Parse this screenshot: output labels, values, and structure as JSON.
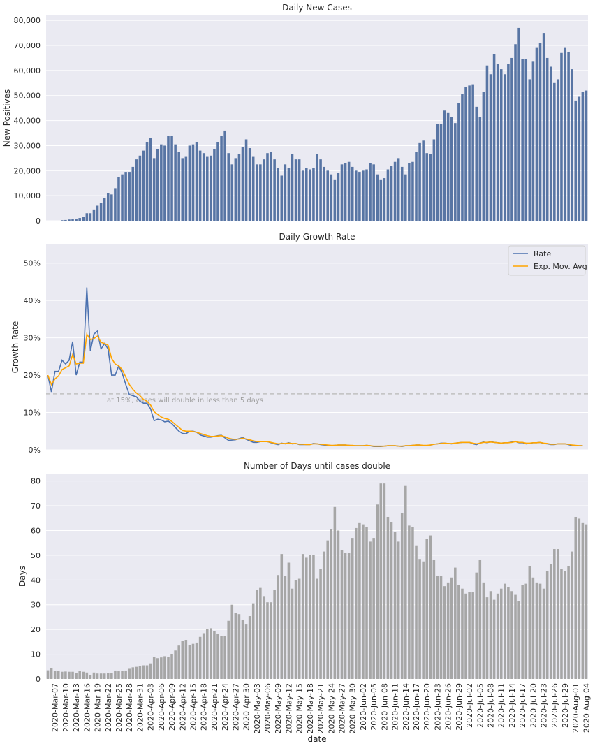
{
  "chart_data": [
    {
      "type": "bar",
      "title": "Daily New Cases",
      "ylabel": "New Positives",
      "xlabel": "",
      "ylim": [
        0,
        82000
      ],
      "yticks": [
        "0",
        "10,000",
        "20,000",
        "30,000",
        "40,000",
        "50,000",
        "60,000",
        "70,000",
        "80,000"
      ],
      "bar_color": "#5875a4",
      "grid": true,
      "start_date": "2020-03-05",
      "values": [
        0,
        0,
        0,
        0,
        200,
        300,
        500,
        700,
        600,
        1100,
        1500,
        3000,
        3000,
        4500,
        6000,
        7000,
        9000,
        11000,
        10500,
        13000,
        17500,
        18500,
        19500,
        19500,
        21500,
        24500,
        26000,
        28000,
        31500,
        33000,
        25000,
        28500,
        30500,
        30000,
        34000,
        34000,
        30500,
        27500,
        25000,
        25500,
        30000,
        30500,
        31500,
        28000,
        27000,
        25500,
        26000,
        28500,
        31500,
        34000,
        36000,
        27000,
        22500,
        25000,
        26500,
        29500,
        32500,
        29000,
        25500,
        22500,
        22500,
        24500,
        27000,
        27500,
        24500,
        21000,
        18000,
        22500,
        21000,
        26500,
        24500,
        24500,
        20000,
        21000,
        20500,
        21000,
        26500,
        24500,
        21500,
        20000,
        18500,
        16500,
        19000,
        22500,
        23000,
        23500,
        21500,
        20000,
        19500,
        20000,
        20500,
        23000,
        22500,
        18500,
        16500,
        17000,
        20500,
        22000,
        23500,
        25000,
        21500,
        18500,
        23000,
        23500,
        27500,
        31000,
        32000,
        27000,
        26500,
        32500,
        38500,
        38500,
        44000,
        43000,
        41500,
        39000,
        47000,
        50500,
        53500,
        54000,
        54500,
        45500,
        41500,
        51500,
        62000,
        58500,
        66500,
        62500,
        60500,
        58500,
        62500,
        65000,
        70500,
        77000,
        64500,
        64500,
        56500,
        63500,
        69000,
        71000,
        75000,
        65000,
        61500,
        55000,
        56500,
        67000,
        69000,
        67500,
        60500,
        48000,
        49500,
        51500,
        52000
      ]
    },
    {
      "type": "line",
      "title": "Daily Growth Rate",
      "ylabel": "Growth Rate",
      "xlabel": "",
      "ylim": [
        0,
        0.55
      ],
      "yticks": [
        "0%",
        "10%",
        "20%",
        "30%",
        "40%",
        "50%"
      ],
      "grid": true,
      "legend_position": "top-right",
      "series": [
        {
          "name": "Rate",
          "color": "#4c72b0",
          "values": [
            0.2,
            0.155,
            0.21,
            0.21,
            0.24,
            0.23,
            0.24,
            0.29,
            0.2,
            0.235,
            0.235,
            0.435,
            0.265,
            0.31,
            0.318,
            0.27,
            0.285,
            0.27,
            0.2,
            0.2,
            0.225,
            0.205,
            0.175,
            0.148,
            0.145,
            0.142,
            0.13,
            0.125,
            0.125,
            0.11,
            0.078,
            0.082,
            0.08,
            0.075,
            0.077,
            0.07,
            0.06,
            0.05,
            0.044,
            0.043,
            0.05,
            0.05,
            0.047,
            0.04,
            0.037,
            0.034,
            0.034,
            0.036,
            0.038,
            0.039,
            0.032,
            0.025,
            0.026,
            0.027,
            0.03,
            0.033,
            0.028,
            0.024,
            0.02,
            0.02,
            0.022,
            0.022,
            0.022,
            0.019,
            0.016,
            0.014,
            0.018,
            0.016,
            0.019,
            0.016,
            0.017,
            0.014,
            0.014,
            0.014,
            0.014,
            0.017,
            0.016,
            0.014,
            0.013,
            0.012,
            0.011,
            0.012,
            0.013,
            0.013,
            0.013,
            0.012,
            0.011,
            0.011,
            0.011,
            0.011,
            0.012,
            0.011,
            0.009,
            0.009,
            0.009,
            0.01,
            0.011,
            0.011,
            0.011,
            0.01,
            0.009,
            0.011,
            0.011,
            0.012,
            0.013,
            0.013,
            0.011,
            0.011,
            0.013,
            0.015,
            0.016,
            0.018,
            0.018,
            0.017,
            0.016,
            0.018,
            0.019,
            0.02,
            0.02,
            0.02,
            0.016,
            0.014,
            0.018,
            0.021,
            0.019,
            0.022,
            0.02,
            0.019,
            0.018,
            0.019,
            0.019,
            0.021,
            0.023,
            0.019,
            0.019,
            0.016,
            0.017,
            0.019,
            0.019,
            0.02,
            0.017,
            0.016,
            0.014,
            0.014,
            0.016,
            0.016,
            0.016,
            0.014,
            0.011,
            0.011,
            0.011,
            0.011
          ]
        },
        {
          "name": "Exp. Mov. Avg",
          "color": "#ffa500",
          "values": [
            0.2,
            0.175,
            0.19,
            0.198,
            0.215,
            0.22,
            0.225,
            0.255,
            0.23,
            0.232,
            0.232,
            0.31,
            0.295,
            0.298,
            0.305,
            0.288,
            0.285,
            0.28,
            0.245,
            0.23,
            0.225,
            0.215,
            0.195,
            0.175,
            0.162,
            0.152,
            0.145,
            0.135,
            0.13,
            0.12,
            0.102,
            0.095,
            0.088,
            0.084,
            0.082,
            0.076,
            0.068,
            0.06,
            0.052,
            0.05,
            0.05,
            0.049,
            0.047,
            0.044,
            0.041,
            0.038,
            0.036,
            0.036,
            0.037,
            0.038,
            0.035,
            0.031,
            0.029,
            0.028,
            0.029,
            0.031,
            0.029,
            0.027,
            0.024,
            0.022,
            0.022,
            0.022,
            0.022,
            0.02,
            0.018,
            0.016,
            0.017,
            0.017,
            0.018,
            0.017,
            0.017,
            0.015,
            0.015,
            0.014,
            0.014,
            0.016,
            0.016,
            0.015,
            0.014,
            0.013,
            0.012,
            0.012,
            0.013,
            0.013,
            0.013,
            0.012,
            0.012,
            0.011,
            0.011,
            0.011,
            0.012,
            0.011,
            0.01,
            0.01,
            0.01,
            0.01,
            0.011,
            0.011,
            0.011,
            0.01,
            0.01,
            0.011,
            0.011,
            0.012,
            0.013,
            0.013,
            0.012,
            0.012,
            0.013,
            0.015,
            0.016,
            0.017,
            0.018,
            0.017,
            0.017,
            0.018,
            0.019,
            0.02,
            0.02,
            0.02,
            0.018,
            0.016,
            0.018,
            0.02,
            0.02,
            0.021,
            0.02,
            0.019,
            0.018,
            0.019,
            0.019,
            0.02,
            0.022,
            0.02,
            0.02,
            0.018,
            0.018,
            0.019,
            0.019,
            0.02,
            0.018,
            0.017,
            0.015,
            0.015,
            0.016,
            0.016,
            0.016,
            0.015,
            0.013,
            0.012,
            0.011,
            0.011
          ]
        }
      ],
      "reference_line": {
        "y": 0.15,
        "style": "dashed",
        "color": "#c0c0c0",
        "label": "at 15%, cases will double in less than 5 days"
      }
    },
    {
      "type": "bar",
      "title": "Number of Days until cases double",
      "ylabel": "Days",
      "xlabel": "date",
      "ylim": [
        0,
        83
      ],
      "yticks": [
        "0",
        "10",
        "20",
        "30",
        "40",
        "50",
        "60",
        "70",
        "80"
      ],
      "bar_color": "#a6a6a6",
      "grid": true,
      "x_tick_labels": [
        "2020-Mar-07",
        "2020-Mar-10",
        "2020-Mar-13",
        "2020-Mar-16",
        "2020-Mar-19",
        "2020-Mar-22",
        "2020-Mar-25",
        "2020-Mar-28",
        "2020-Mar-31",
        "2020-Apr-03",
        "2020-Apr-06",
        "2020-Apr-09",
        "2020-Apr-12",
        "2020-Apr-15",
        "2020-Apr-18",
        "2020-Apr-21",
        "2020-Apr-24",
        "2020-Apr-27",
        "2020-Apr-30",
        "2020-May-03",
        "2020-May-06",
        "2020-May-09",
        "2020-May-12",
        "2020-May-15",
        "2020-May-18",
        "2020-May-21",
        "2020-May-24",
        "2020-May-27",
        "2020-May-30",
        "2020-Jun-02",
        "2020-Jun-05",
        "2020-Jun-08",
        "2020-Jun-11",
        "2020-Jun-14",
        "2020-Jun-17",
        "2020-Jun-20",
        "2020-Jun-23",
        "2020-Jun-26",
        "2020-Jun-29",
        "2020-Jul-02",
        "2020-Jul-05",
        "2020-Jul-08",
        "2020-Jul-11",
        "2020-Jul-14",
        "2020-Jul-17",
        "2020-Jul-20",
        "2020-Jul-23",
        "2020-Jul-26",
        "2020-Jul-29",
        "2020-Aug-01",
        "2020-Aug-04"
      ],
      "values": [
        3.5,
        4.5,
        3.3,
        3.3,
        2.9,
        3.0,
        2.9,
        2.9,
        2.4,
        3.3,
        2.9,
        2.6,
        1.6,
        2.6,
        2.2,
        2.2,
        2.2,
        2.5,
        2.4,
        3.4,
        3.1,
        3.3,
        3.4,
        4.1,
        4.7,
        4.9,
        5.2,
        5.5,
        5.5,
        6.3,
        8.9,
        8.4,
        8.7,
        9.2,
        9.0,
        9.9,
        11.5,
        13.5,
        15.4,
        15.8,
        13.8,
        14.2,
        14.7,
        17.0,
        18.5,
        20.2,
        20.5,
        19.2,
        18.2,
        17.5,
        17.5,
        23.5,
        30.0,
        26.8,
        26.2,
        24.0,
        22.0,
        25.4,
        30.6,
        35.9,
        36.8,
        33.5,
        31.0,
        31.0,
        36.0,
        42.0,
        50.5,
        41.5,
        47.0,
        36.5,
        40.0,
        40.5,
        50.5,
        49.0,
        50.0,
        50.0,
        40.5,
        44.5,
        51.5,
        56.0,
        60.5,
        69.5,
        60.0,
        52.0,
        51.0,
        51.0,
        57.0,
        61.0,
        63.0,
        62.5,
        61.5,
        55.5,
        57.0,
        70.5,
        79.0,
        79.0,
        65.5,
        63.5,
        59.5,
        55.5,
        67.0,
        78.0,
        62.0,
        61.5,
        54.0,
        48.5,
        47.5,
        56.5,
        58.0,
        48.0,
        41.5,
        41.5,
        37.5,
        39.0,
        41.0,
        45.0,
        38.0,
        36.5,
        34.5,
        35.0,
        35.0,
        43.0,
        48.0,
        39.0,
        33.0,
        35.5,
        32.0,
        34.5,
        36.5,
        38.5,
        37.0,
        35.5,
        34.0,
        31.5,
        38.0,
        38.5,
        45.5,
        41.0,
        39.0,
        38.5,
        36.5,
        43.5,
        46.5,
        52.5,
        52.5,
        44.5,
        43.5,
        45.5,
        51.5,
        65.5,
        64.8,
        63.0,
        62.5
      ]
    }
  ]
}
